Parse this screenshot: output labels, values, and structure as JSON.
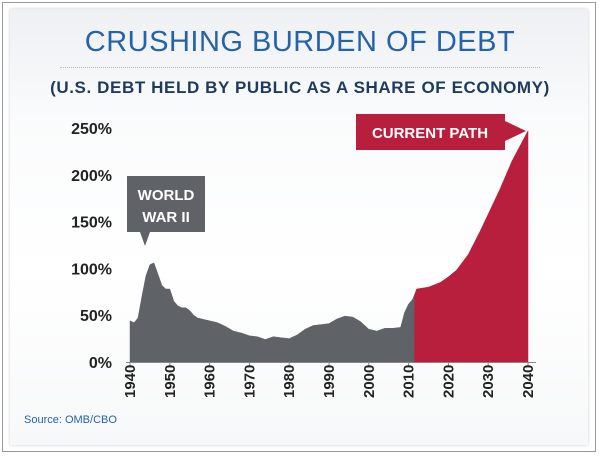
{
  "chart_data": {
    "type": "area",
    "title": "CRUSHING BURDEN OF DEBT",
    "subtitle": "(U.S. DEBT HELD BY PUBLIC AS A SHARE OF ECONOMY)",
    "xlabel": "",
    "ylabel": "",
    "xlim": [
      1940,
      2040
    ],
    "ylim": [
      0,
      250
    ],
    "x_ticks": [
      "1940",
      "1950",
      "1960",
      "1970",
      "1980",
      "1990",
      "2000",
      "2010",
      "2020",
      "2030",
      "2040"
    ],
    "y_ticks": [
      "0%",
      "50%",
      "100%",
      "150%",
      "200%",
      "250%"
    ],
    "grid": false,
    "series": [
      {
        "segment": "historical",
        "color": "#5f6368",
        "x": [
          1940,
          1941,
          1942,
          1943,
          1944,
          1945,
          1946,
          1947,
          1948,
          1949,
          1950,
          1951,
          1952,
          1953,
          1954,
          1955,
          1956,
          1957,
          1958,
          1959,
          1960,
          1962,
          1964,
          1966,
          1968,
          1970,
          1972,
          1974,
          1976,
          1978,
          1980,
          1982,
          1984,
          1986,
          1988,
          1990,
          1992,
          1994,
          1996,
          1998,
          2000,
          2002,
          2004,
          2006,
          2008,
          2009,
          2010,
          2011,
          2011.5
        ],
        "values": [
          44,
          42,
          47,
          70,
          92,
          104,
          106,
          94,
          82,
          78,
          78,
          65,
          60,
          58,
          58,
          55,
          50,
          47,
          46,
          45,
          44,
          42,
          38,
          33,
          31,
          28,
          27,
          24,
          27,
          26,
          25,
          29,
          35,
          39,
          40,
          41,
          46,
          49,
          48,
          43,
          35,
          33,
          36,
          36,
          37,
          53,
          62,
          67,
          72
        ]
      },
      {
        "segment": "projected",
        "color": "#b81f3c",
        "x": [
          2011.5,
          2012,
          2015,
          2018,
          2020,
          2022,
          2025,
          2028,
          2030,
          2033,
          2036,
          2040
        ],
        "values": [
          72,
          78,
          80,
          85,
          91,
          98,
          115,
          140,
          158,
          185,
          215,
          247
        ]
      }
    ],
    "annotations": [
      {
        "text_lines": [
          "WORLD",
          "WAR II"
        ],
        "year": 1946,
        "color": "#5f6368"
      },
      {
        "text": "CURRENT PATH",
        "year": 2040,
        "color": "#b81f3c"
      }
    ],
    "source": "Source: OMB/CBO"
  }
}
